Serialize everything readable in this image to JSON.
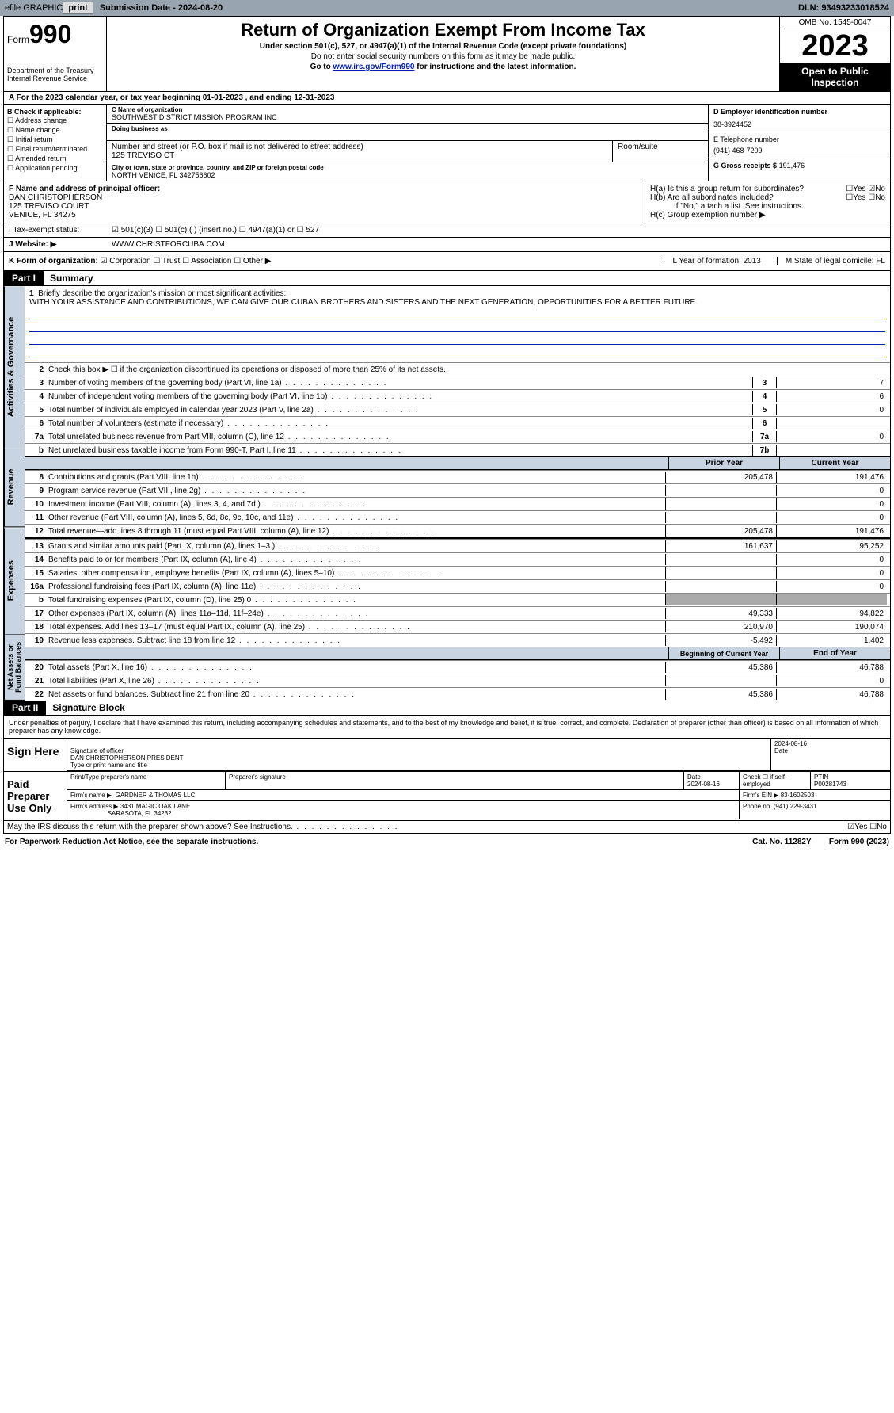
{
  "topbar": {
    "efile": "efile GRAPHIC",
    "print": "print",
    "subdate_label": "Submission Date - 2024-08-20",
    "dln": "DLN: 93493233018524"
  },
  "header": {
    "form_label": "Form",
    "form_num": "990",
    "title": "Return of Organization Exempt From Income Tax",
    "sub1": "Under section 501(c), 527, or 4947(a)(1) of the Internal Revenue Code (except private foundations)",
    "sub2": "Do not enter social security numbers on this form as it may be made public.",
    "sub3_pre": "Go to ",
    "sub3_link": "www.irs.gov/Form990",
    "sub3_post": " for instructions and the latest information.",
    "dept": "Department of the Treasury\nInternal Revenue Service",
    "omb": "OMB No. 1545-0047",
    "year": "2023",
    "inspect": "Open to Public Inspection"
  },
  "row_a": "A For the 2023 calendar year, or tax year beginning 01-01-2023   , and ending 12-31-2023",
  "col_b": {
    "hdr": "B Check if applicable:",
    "items": [
      "Address change",
      "Name change",
      "Initial return",
      "Final return/terminated",
      "Amended return",
      "Application pending"
    ]
  },
  "col_c": {
    "name_lbl": "C Name of organization",
    "name": "SOUTHWEST DISTRICT MISSION PROGRAM INC",
    "dba_lbl": "Doing business as",
    "dba": "",
    "addr_lbl": "Number and street (or P.O. box if mail is not delivered to street address)",
    "addr": "125 TREVISO CT",
    "room_lbl": "Room/suite",
    "city_lbl": "City or town, state or province, country, and ZIP or foreign postal code",
    "city": "NORTH VENICE, FL  342756602"
  },
  "col_de": {
    "d_lbl": "D Employer identification number",
    "d_val": "38-3924452",
    "e_lbl": "E Telephone number",
    "e_val": "(941) 468-7209",
    "g_lbl": "G Gross receipts $",
    "g_val": "191,476"
  },
  "section_f": {
    "lbl": "F Name and address of principal officer:",
    "name": "DAN CHRISTOPHERSON",
    "addr1": "125 TREVISO COURT",
    "addr2": "VENICE, FL  34275"
  },
  "section_h": {
    "ha": "H(a)  Is this a group return for subordinates?",
    "ha_ans": "☐Yes ☑No",
    "hb": "H(b)  Are all subordinates included?",
    "hb_ans": "☐Yes ☐No",
    "hb_note": "If \"No,\" attach a list. See instructions.",
    "hc": "H(c)  Group exemption number ▶"
  },
  "row_i": {
    "lbl": "I   Tax-exempt status:",
    "opts": "☑ 501(c)(3)    ☐ 501(c) (  ) (insert no.)    ☐ 4947(a)(1) or    ☐ 527"
  },
  "row_j": {
    "lbl": "J   Website: ▶",
    "val": "WWW.CHRISTFORCUBA.COM"
  },
  "row_k": {
    "lbl": "K Form of organization:",
    "opts": "☑ Corporation  ☐ Trust  ☐ Association  ☐ Other ▶",
    "l": "L Year of formation: 2013",
    "m": "M State of legal domicile: FL"
  },
  "part1": {
    "hdr": "Part I",
    "title": "Summary",
    "tab_ag": "Activities & Governance",
    "tab_rev": "Revenue",
    "tab_exp": "Expenses",
    "tab_na": "Net Assets or Fund Balances",
    "line1_lbl": "Briefly describe the organization's mission or most significant activities:",
    "line1_txt": "WITH YOUR ASSISTANCE AND CONTRIBUTIONS, WE CAN GIVE OUR CUBAN BROTHERS AND SISTERS AND THE NEXT GENERATION, OPPORTUNITIES FOR A BETTER FUTURE.",
    "line2": "Check this box ▶ ☐ if the organization discontinued its operations or disposed of more than 25% of its net assets.",
    "lines_simplenum": [
      {
        "n": "3",
        "t": "Number of voting members of the governing body (Part VI, line 1a)",
        "k": "3",
        "v": "7"
      },
      {
        "n": "4",
        "t": "Number of independent voting members of the governing body (Part VI, line 1b)",
        "k": "4",
        "v": "6"
      },
      {
        "n": "5",
        "t": "Total number of individuals employed in calendar year 2023 (Part V, line 2a)",
        "k": "5",
        "v": "0"
      },
      {
        "n": "6",
        "t": "Total number of volunteers (estimate if necessary)",
        "k": "6",
        "v": ""
      },
      {
        "n": "7a",
        "t": "Total unrelated business revenue from Part VIII, column (C), line 12",
        "k": "7a",
        "v": "0"
      },
      {
        "n": "b",
        "t": "Net unrelated business taxable income from Form 990-T, Part I, line 11",
        "k": "7b",
        "v": ""
      }
    ],
    "yr_prior": "Prior Year",
    "yr_curr": "Current Year",
    "rev_lines": [
      {
        "n": "8",
        "t": "Contributions and grants (Part VIII, line 1h)",
        "p": "205,478",
        "c": "191,476"
      },
      {
        "n": "9",
        "t": "Program service revenue (Part VIII, line 2g)",
        "p": "",
        "c": "0"
      },
      {
        "n": "10",
        "t": "Investment income (Part VIII, column (A), lines 3, 4, and 7d )",
        "p": "",
        "c": "0"
      },
      {
        "n": "11",
        "t": "Other revenue (Part VIII, column (A), lines 5, 6d, 8c, 9c, 10c, and 11e)",
        "p": "",
        "c": "0"
      },
      {
        "n": "12",
        "t": "Total revenue—add lines 8 through 11 (must equal Part VIII, column (A), line 12)",
        "p": "205,478",
        "c": "191,476"
      }
    ],
    "exp_lines": [
      {
        "n": "13",
        "t": "Grants and similar amounts paid (Part IX, column (A), lines 1–3 )",
        "p": "161,637",
        "c": "95,252"
      },
      {
        "n": "14",
        "t": "Benefits paid to or for members (Part IX, column (A), line 4)",
        "p": "",
        "c": "0"
      },
      {
        "n": "15",
        "t": "Salaries, other compensation, employee benefits (Part IX, column (A), lines 5–10)",
        "p": "",
        "c": "0"
      },
      {
        "n": "16a",
        "t": "Professional fundraising fees (Part IX, column (A), line 11e)",
        "p": "",
        "c": "0"
      },
      {
        "n": "b",
        "t": "Total fundraising expenses (Part IX, column (D), line 25) 0",
        "p": "GREY",
        "c": "GREY"
      },
      {
        "n": "17",
        "t": "Other expenses (Part IX, column (A), lines 11a–11d, 11f–24e)",
        "p": "49,333",
        "c": "94,822"
      },
      {
        "n": "18",
        "t": "Total expenses. Add lines 13–17 (must equal Part IX, column (A), line 25)",
        "p": "210,970",
        "c": "190,074"
      },
      {
        "n": "19",
        "t": "Revenue less expenses. Subtract line 18 from line 12",
        "p": "-5,492",
        "c": "1,402"
      }
    ],
    "na_hdr_p": "Beginning of Current Year",
    "na_hdr_c": "End of Year",
    "na_lines": [
      {
        "n": "20",
        "t": "Total assets (Part X, line 16)",
        "p": "45,386",
        "c": "46,788"
      },
      {
        "n": "21",
        "t": "Total liabilities (Part X, line 26)",
        "p": "",
        "c": "0"
      },
      {
        "n": "22",
        "t": "Net assets or fund balances. Subtract line 21 from line 20",
        "p": "45,386",
        "c": "46,788"
      }
    ]
  },
  "part2": {
    "hdr": "Part II",
    "title": "Signature Block",
    "decl": "Under penalties of perjury, I declare that I have examined this return, including accompanying schedules and statements, and to the best of my knowledge and belief, it is true, correct, and complete. Declaration of preparer (other than officer) is based on all information of which preparer has any knowledge."
  },
  "sign": {
    "lbl": "Sign Here",
    "sig_lbl": "Signature of officer",
    "name": "DAN CHRISTOPHERSON  PRESIDENT",
    "type_lbl": "Type or print name and title",
    "date_lbl": "Date",
    "date": "2024-08-16"
  },
  "paid": {
    "lbl": "Paid Preparer Use Only",
    "col1": "Print/Type preparer's name",
    "col2": "Preparer's signature",
    "col3_lbl": "Date",
    "col3": "2024-08-16",
    "col4": "Check ☐ if self-employed",
    "col5_lbl": "PTIN",
    "col5": "P00281743",
    "firm_lbl": "Firm's name     ▶",
    "firm": "GARDNER & THOMAS LLC",
    "ein_lbl": "Firm's EIN ▶",
    "ein": "83-1602503",
    "addr_lbl": "Firm's address ▶",
    "addr1": "3431 MAGIC OAK LANE",
    "addr2": "SARASOTA, FL  34232",
    "phone_lbl": "Phone no.",
    "phone": "(941) 229-3431"
  },
  "discuss": {
    "txt": "May the IRS discuss this return with the preparer shown above? See Instructions.",
    "ans": "☑Yes  ☐No"
  },
  "footer": {
    "left": "For Paperwork Reduction Act Notice, see the separate instructions.",
    "mid": "Cat. No. 11282Y",
    "right": "Form 990 (2023)"
  }
}
